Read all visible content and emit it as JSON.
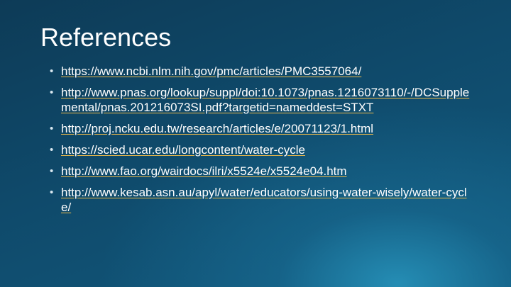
{
  "slide": {
    "title": "References",
    "references": [
      "https://www.ncbi.nlm.nih.gov/pmc/articles/PMC3557064/",
      "http://www.pnas.org/lookup/suppl/doi:10.1073/pnas.1216073110/-/DCSupplemental/pnas.201216073SI.pdf?targetid=nameddest=STXT",
      "http://proj.ncku.edu.tw/research/articles/e/20071123/1.html",
      "https://scied.ucar.edu/longcontent/water-cycle",
      "http://www.fao.org/wairdocs/ilri/x5524e/x5524e04.htm",
      "http://www.kesab.asn.au/apyl/water/educators/using-water-wisely/water-cycle/"
    ]
  },
  "colors": {
    "link_underline": "#e9b84a",
    "background": "#0f4a6b"
  }
}
